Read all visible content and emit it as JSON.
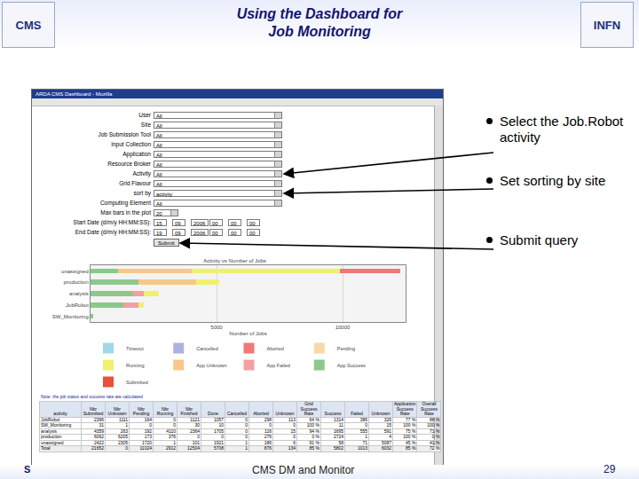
{
  "header": {
    "title_lines": [
      "Using the Dashboard for",
      "Job Monitoring"
    ],
    "logo_left": "CMS",
    "logo_right": "INFN",
    "footer_left": "S",
    "footer_center": "CMS DM and Monitor",
    "page": "29"
  },
  "bullets": [
    "Select the Job.Robot activity",
    "Set sorting by site",
    "Submit query"
  ],
  "window": {
    "title": "ARDA CMS Dashboard - Mozilla"
  },
  "form": {
    "fields": [
      {
        "label": "User",
        "values": [
          "All"
        ]
      },
      {
        "label": "Site",
        "values": [
          "All"
        ]
      },
      {
        "label": "Job Submission Tool",
        "values": [
          "All"
        ]
      },
      {
        "label": "Input Collection",
        "values": [
          "All"
        ]
      },
      {
        "label": "Application",
        "values": [
          "All"
        ]
      },
      {
        "label": "Resource Broker",
        "values": [
          "All"
        ]
      },
      {
        "label": "Activity",
        "values": [
          "All"
        ]
      },
      {
        "label": "Grid Flavour",
        "values": [
          "All"
        ]
      },
      {
        "label": "sort by",
        "values": [
          "activity"
        ]
      },
      {
        "label": "Computing Element",
        "values": [
          "All"
        ]
      },
      {
        "label": "Max bars in the plot",
        "values": [
          "20"
        ]
      },
      {
        "label": "Start Date (d/m/y HH:MM:SS):",
        "values": [
          "15",
          "09",
          "2006",
          "00",
          "00",
          "00"
        ]
      },
      {
        "label": "End Date (d/m/y HH:MM:SS):",
        "values": [
          "19",
          "09",
          "2006",
          "00",
          "00",
          "00"
        ]
      }
    ],
    "button": "Submit"
  },
  "chart_data": {
    "type": "bar",
    "title": "Activity vs Number of Jobs",
    "x_label": "Number of Jobs",
    "orientation": "horizontal",
    "stacked": true,
    "grid": true,
    "legend": "bottom",
    "categories": [
      "unassigned",
      "production",
      "analysis",
      "JobRobot",
      "SW_Monitoring"
    ],
    "series": [
      {
        "name": "Submitted",
        "color": "#e8503c",
        "values": [
          0,
          0,
          0,
          0,
          0
        ]
      },
      {
        "name": "App Success",
        "color": "#8cc88c",
        "values": [
          1100,
          1900,
          1700,
          1300,
          100
        ]
      },
      {
        "name": "App Failed",
        "color": "#f4a0a0",
        "values": [
          0,
          0,
          400,
          600,
          0
        ]
      },
      {
        "name": "App Unknown",
        "color": "#f8c88a",
        "values": [
          2900,
          2300,
          0,
          0,
          0
        ]
      },
      {
        "name": "Running",
        "color": "#f0f070",
        "values": [
          5900,
          900,
          600,
          200,
          0
        ]
      },
      {
        "name": "Pending",
        "color": "#f5d9a8",
        "values": [
          0,
          0,
          0,
          0,
          0
        ]
      },
      {
        "name": "Aborted",
        "color": "#f07878",
        "values": [
          2400,
          0,
          0,
          0,
          0
        ]
      },
      {
        "name": "Cancelled",
        "color": "#b0b0e0",
        "values": [
          0,
          0,
          0,
          0,
          0
        ]
      },
      {
        "name": "Timeout",
        "color": "#a0d8e8",
        "values": [
          0,
          0,
          0,
          0,
          0
        ]
      }
    ],
    "xlim": [
      0,
      12500
    ],
    "xticks": [
      5000,
      10000
    ]
  },
  "note": "Note: the job status and success rate are calculated",
  "table": {
    "columns": [
      "activity",
      "Nbr Submitted",
      "Nbr Unknown",
      "Nbr Pending",
      "Nbr Running",
      "Nbr Finished",
      "Done",
      "Cancelled",
      "Aborted",
      "Unknown",
      "Grid Success Rate",
      "Success",
      "Failed",
      "Unknown",
      "Application Success Rate",
      "Overall Success Rate"
    ],
    "rows": [
      [
        "JobRobot",
        "2396",
        "1111",
        "164",
        "0",
        "1121",
        "1057",
        "0",
        "298",
        "113",
        "64 %",
        "1314",
        "386",
        "326",
        "77 %",
        "88 %"
      ],
      [
        "SW_Monitoring",
        "31",
        "1",
        "0",
        "0",
        "30",
        "10",
        "0",
        "0",
        "0",
        "100 %",
        "11",
        "0",
        "15",
        "100 %",
        "100 %"
      ],
      [
        "analysis",
        "4359",
        "263",
        "192",
        "4110",
        "2364",
        "1705",
        "0",
        "116",
        "15",
        "94 %",
        "1695",
        "555",
        "591",
        "75 %",
        "71 %"
      ],
      [
        "production",
        "6062",
        "6205",
        "173",
        "376",
        "0",
        "0",
        "0",
        "276",
        "0",
        "0 %",
        "2724",
        "1",
        "4",
        "100 %",
        "0 %"
      ],
      [
        "unassigned",
        "2422",
        "2305",
        "1720",
        "1",
        "101",
        "1921",
        "1",
        "186",
        "6",
        "91 %",
        "58",
        "71",
        "5087",
        "45 %",
        "41 %"
      ],
      [
        "Total",
        "21652",
        "0",
        "11024",
        "2912",
        "12504",
        "5708",
        "1",
        "876",
        "134",
        "85 %",
        "5802",
        "1013",
        "6032",
        "85 %",
        "72 %"
      ]
    ]
  }
}
